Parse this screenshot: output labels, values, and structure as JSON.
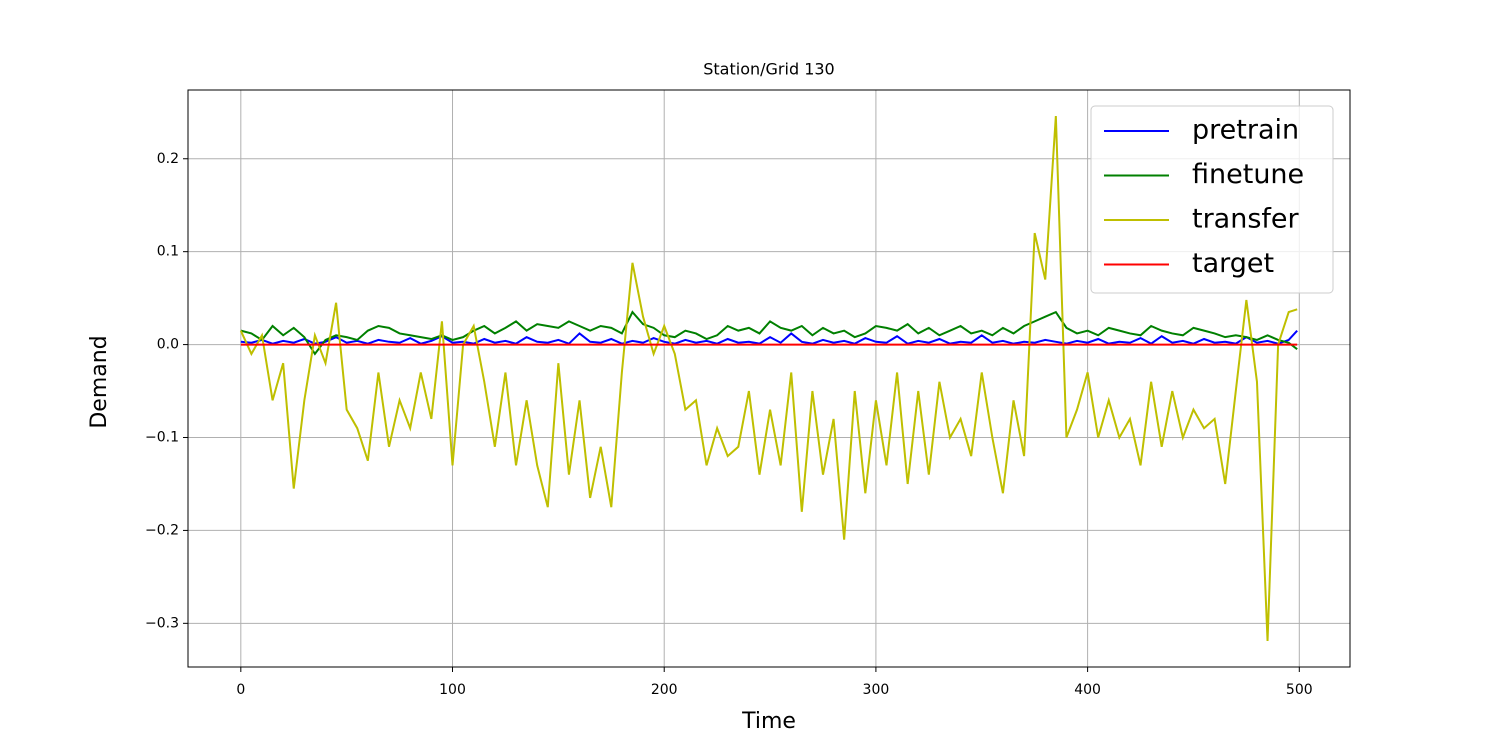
{
  "chart_data": {
    "type": "line",
    "title": "Station/Grid 130",
    "xlabel": "Time",
    "ylabel": "Demand",
    "x": [
      0,
      5,
      10,
      15,
      20,
      25,
      30,
      35,
      40,
      45,
      50,
      55,
      60,
      65,
      70,
      75,
      80,
      85,
      90,
      95,
      100,
      105,
      110,
      115,
      120,
      125,
      130,
      135,
      140,
      145,
      150,
      155,
      160,
      165,
      170,
      175,
      180,
      185,
      190,
      195,
      200,
      205,
      210,
      215,
      220,
      225,
      230,
      235,
      240,
      245,
      250,
      255,
      260,
      265,
      270,
      275,
      280,
      285,
      290,
      295,
      300,
      305,
      310,
      315,
      320,
      325,
      330,
      335,
      340,
      345,
      350,
      355,
      360,
      365,
      370,
      375,
      380,
      385,
      390,
      395,
      400,
      405,
      410,
      415,
      420,
      425,
      430,
      435,
      440,
      445,
      450,
      455,
      460,
      465,
      470,
      475,
      480,
      485,
      490,
      495,
      499
    ],
    "series": [
      {
        "name": "pretrain",
        "color": "#0000ff",
        "values": [
          0.003,
          0.002,
          0.005,
          0.001,
          0.004,
          0.002,
          0.006,
          0.001,
          0.003,
          0.008,
          0.002,
          0.004,
          0.001,
          0.005,
          0.003,
          0.002,
          0.007,
          0.001,
          0.004,
          0.009,
          0.002,
          0.003,
          0.001,
          0.006,
          0.002,
          0.004,
          0.001,
          0.008,
          0.003,
          0.002,
          0.005,
          0.001,
          0.012,
          0.003,
          0.002,
          0.006,
          0.001,
          0.004,
          0.002,
          0.007,
          0.003,
          0.001,
          0.005,
          0.002,
          0.004,
          0.001,
          0.006,
          0.002,
          0.003,
          0.001,
          0.008,
          0.002,
          0.012,
          0.003,
          0.001,
          0.005,
          0.002,
          0.004,
          0.001,
          0.007,
          0.003,
          0.002,
          0.009,
          0.001,
          0.004,
          0.002,
          0.006,
          0.001,
          0.003,
          0.002,
          0.01,
          0.002,
          0.004,
          0.001,
          0.003,
          0.002,
          0.005,
          0.003,
          0.001,
          0.004,
          0.002,
          0.006,
          0.001,
          0.003,
          0.002,
          0.007,
          0.001,
          0.009,
          0.002,
          0.004,
          0.001,
          0.006,
          0.002,
          0.003,
          0.001,
          0.008,
          0.002,
          0.004,
          0.001,
          0.005,
          0.015
        ]
      },
      {
        "name": "finetune",
        "color": "#008000",
        "values": [
          0.015,
          0.012,
          0.005,
          0.02,
          0.01,
          0.018,
          0.008,
          -0.01,
          0.005,
          0.01,
          0.008,
          0.005,
          0.015,
          0.02,
          0.018,
          0.012,
          0.01,
          0.008,
          0.006,
          0.01,
          0.005,
          0.008,
          0.015,
          0.02,
          0.012,
          0.018,
          0.025,
          0.015,
          0.022,
          0.02,
          0.018,
          0.025,
          0.02,
          0.015,
          0.02,
          0.018,
          0.012,
          0.035,
          0.022,
          0.018,
          0.01,
          0.008,
          0.015,
          0.012,
          0.006,
          0.01,
          0.02,
          0.015,
          0.018,
          0.012,
          0.025,
          0.018,
          0.015,
          0.02,
          0.01,
          0.018,
          0.012,
          0.015,
          0.008,
          0.012,
          0.02,
          0.018,
          0.015,
          0.022,
          0.012,
          0.018,
          0.01,
          0.015,
          0.02,
          0.012,
          0.015,
          0.01,
          0.018,
          0.012,
          0.02,
          0.025,
          0.03,
          0.035,
          0.018,
          0.012,
          0.015,
          0.01,
          0.018,
          0.015,
          0.012,
          0.01,
          0.02,
          0.015,
          0.012,
          0.01,
          0.018,
          0.015,
          0.012,
          0.008,
          0.01,
          0.008,
          0.005,
          0.01,
          0.005,
          0.002,
          -0.005
        ]
      },
      {
        "name": "transfer",
        "color": "#bfbf00",
        "values": [
          0.015,
          -0.01,
          0.01,
          -0.06,
          -0.02,
          -0.155,
          -0.06,
          0.01,
          -0.02,
          0.045,
          -0.07,
          -0.09,
          -0.125,
          -0.03,
          -0.11,
          -0.06,
          -0.09,
          -0.03,
          -0.08,
          0.025,
          -0.13,
          0.0,
          0.02,
          -0.04,
          -0.11,
          -0.03,
          -0.13,
          -0.06,
          -0.13,
          -0.175,
          -0.02,
          -0.14,
          -0.06,
          -0.165,
          -0.11,
          -0.175,
          -0.03,
          0.088,
          0.03,
          -0.01,
          0.02,
          -0.01,
          -0.07,
          -0.06,
          -0.13,
          -0.09,
          -0.12,
          -0.11,
          -0.05,
          -0.14,
          -0.07,
          -0.13,
          -0.03,
          -0.18,
          -0.05,
          -0.14,
          -0.08,
          -0.21,
          -0.05,
          -0.16,
          -0.06,
          -0.13,
          -0.03,
          -0.15,
          -0.05,
          -0.14,
          -0.04,
          -0.1,
          -0.08,
          -0.12,
          -0.03,
          -0.1,
          -0.16,
          -0.06,
          -0.12,
          0.12,
          0.07,
          0.246,
          -0.1,
          -0.07,
          -0.03,
          -0.1,
          -0.06,
          -0.1,
          -0.08,
          -0.13,
          -0.04,
          -0.11,
          -0.05,
          -0.1,
          -0.07,
          -0.09,
          -0.08,
          -0.15,
          -0.05,
          0.048,
          -0.04,
          -0.319,
          0.0,
          0.035,
          0.038
        ]
      },
      {
        "name": "target",
        "color": "#ff0000",
        "values": [
          0,
          0,
          0,
          0,
          0,
          0,
          0,
          0,
          0,
          0,
          0,
          0,
          0,
          0,
          0,
          0,
          0,
          0,
          0,
          0,
          0,
          0,
          0,
          0,
          0,
          0,
          0,
          0,
          0,
          0,
          0,
          0,
          0,
          0,
          0,
          0,
          0,
          0,
          0,
          0,
          0,
          0,
          0,
          0,
          0,
          0,
          0,
          0,
          0,
          0,
          0,
          0,
          0,
          0,
          0,
          0,
          0,
          0,
          0,
          0,
          0,
          0,
          0,
          0,
          0,
          0,
          0,
          0,
          0,
          0,
          0,
          0,
          0,
          0,
          0,
          0,
          0,
          0,
          0,
          0,
          0,
          0,
          0,
          0,
          0,
          0,
          0,
          0,
          0,
          0,
          0,
          0,
          0,
          0,
          0,
          0,
          0,
          0,
          0,
          0,
          0
        ]
      }
    ],
    "xlim": [
      -24.95,
      523.95
    ],
    "xticks": [
      0,
      100,
      200,
      300,
      400,
      500
    ],
    "ylim": [
      -0.347,
      0.274
    ],
    "yticks": [
      {
        "value": -0.3,
        "label": "−0.3"
      },
      {
        "value": -0.2,
        "label": "−0.2"
      },
      {
        "value": -0.1,
        "label": "−0.1"
      },
      {
        "value": 0,
        "label": "0.0"
      },
      0.1,
      0.2
    ],
    "grid": true,
    "legend": "upper right"
  }
}
